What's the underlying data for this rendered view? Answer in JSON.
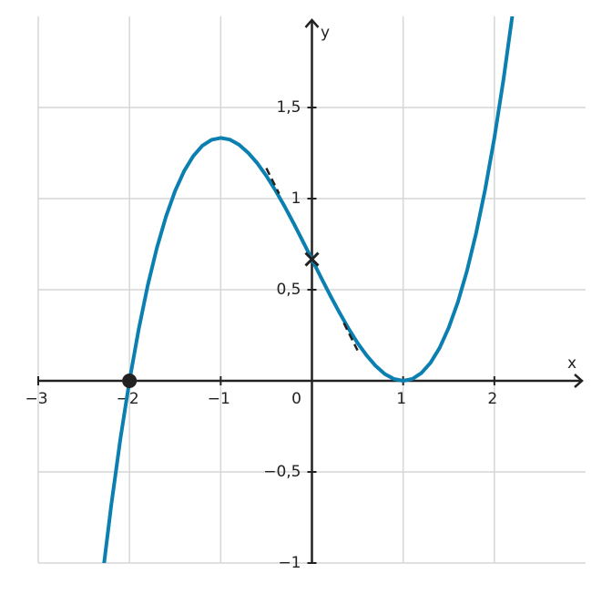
{
  "chart_data": {
    "type": "line",
    "x_label": "x",
    "y_label": "y",
    "xlim": [
      -3,
      3
    ],
    "ylim": [
      -1,
      2
    ],
    "grid": true,
    "xticks": [
      {
        "value": -3,
        "label": "−3"
      },
      {
        "value": -2,
        "label": "−2"
      },
      {
        "value": -1,
        "label": "−1"
      },
      0,
      1,
      2
    ],
    "yticks": [
      {
        "value": -1,
        "label": "−1"
      },
      {
        "value": -0.5,
        "label": "−0,5"
      },
      {
        "value": 0.5,
        "label": "0,5"
      },
      1,
      {
        "value": 1.5,
        "label": "1,5"
      }
    ],
    "series": [
      {
        "color": "#0b7fb0",
        "x": [
          -2.3,
          -2.2,
          -2.1,
          -2.0,
          -1.9,
          -1.8,
          -1.7,
          -1.6,
          -1.5,
          -1.4,
          -1.3,
          -1.2,
          -1.1,
          -1.0,
          -0.9,
          -0.8,
          -0.7,
          -0.6,
          -0.5,
          -0.4,
          -0.3,
          -0.2,
          -0.1,
          0,
          0.1,
          0.2,
          0.3,
          0.4,
          0.5,
          0.6,
          0.7,
          0.8,
          0.9,
          1.0,
          1.1,
          1.2,
          1.3,
          1.4,
          1.5,
          1.6,
          1.7,
          1.8,
          1.9,
          2.0,
          2.1,
          2.2
        ],
        "values": [
          -1.089,
          -0.683,
          -0.32,
          0,
          0.28,
          0.523,
          0.729,
          0.901,
          1.042,
          1.152,
          1.234,
          1.291,
          1.323,
          1.333,
          1.324,
          1.296,
          1.252,
          1.195,
          1.125,
          1.045,
          0.958,
          0.864,
          0.766,
          0.667,
          0.567,
          0.469,
          0.376,
          0.288,
          0.208,
          0.139,
          0.081,
          0.037,
          0.01,
          0,
          0.01,
          0.043,
          0.099,
          0.181,
          0.292,
          0.432,
          0.604,
          0.811,
          1.053,
          1.333,
          1.654,
          2.016
        ]
      }
    ],
    "tangent": {
      "color": "#222222",
      "x": [
        -0.5,
        -0.36,
        0,
        0.35,
        0.5
      ],
      "values": [
        1.167,
        1.027,
        null,
        0.317,
        0.167
      ]
    },
    "points": [
      {
        "x": -2,
        "y": 0,
        "marker": "circle"
      },
      {
        "x": 0,
        "y": 0.667,
        "marker": "cross"
      }
    ]
  }
}
